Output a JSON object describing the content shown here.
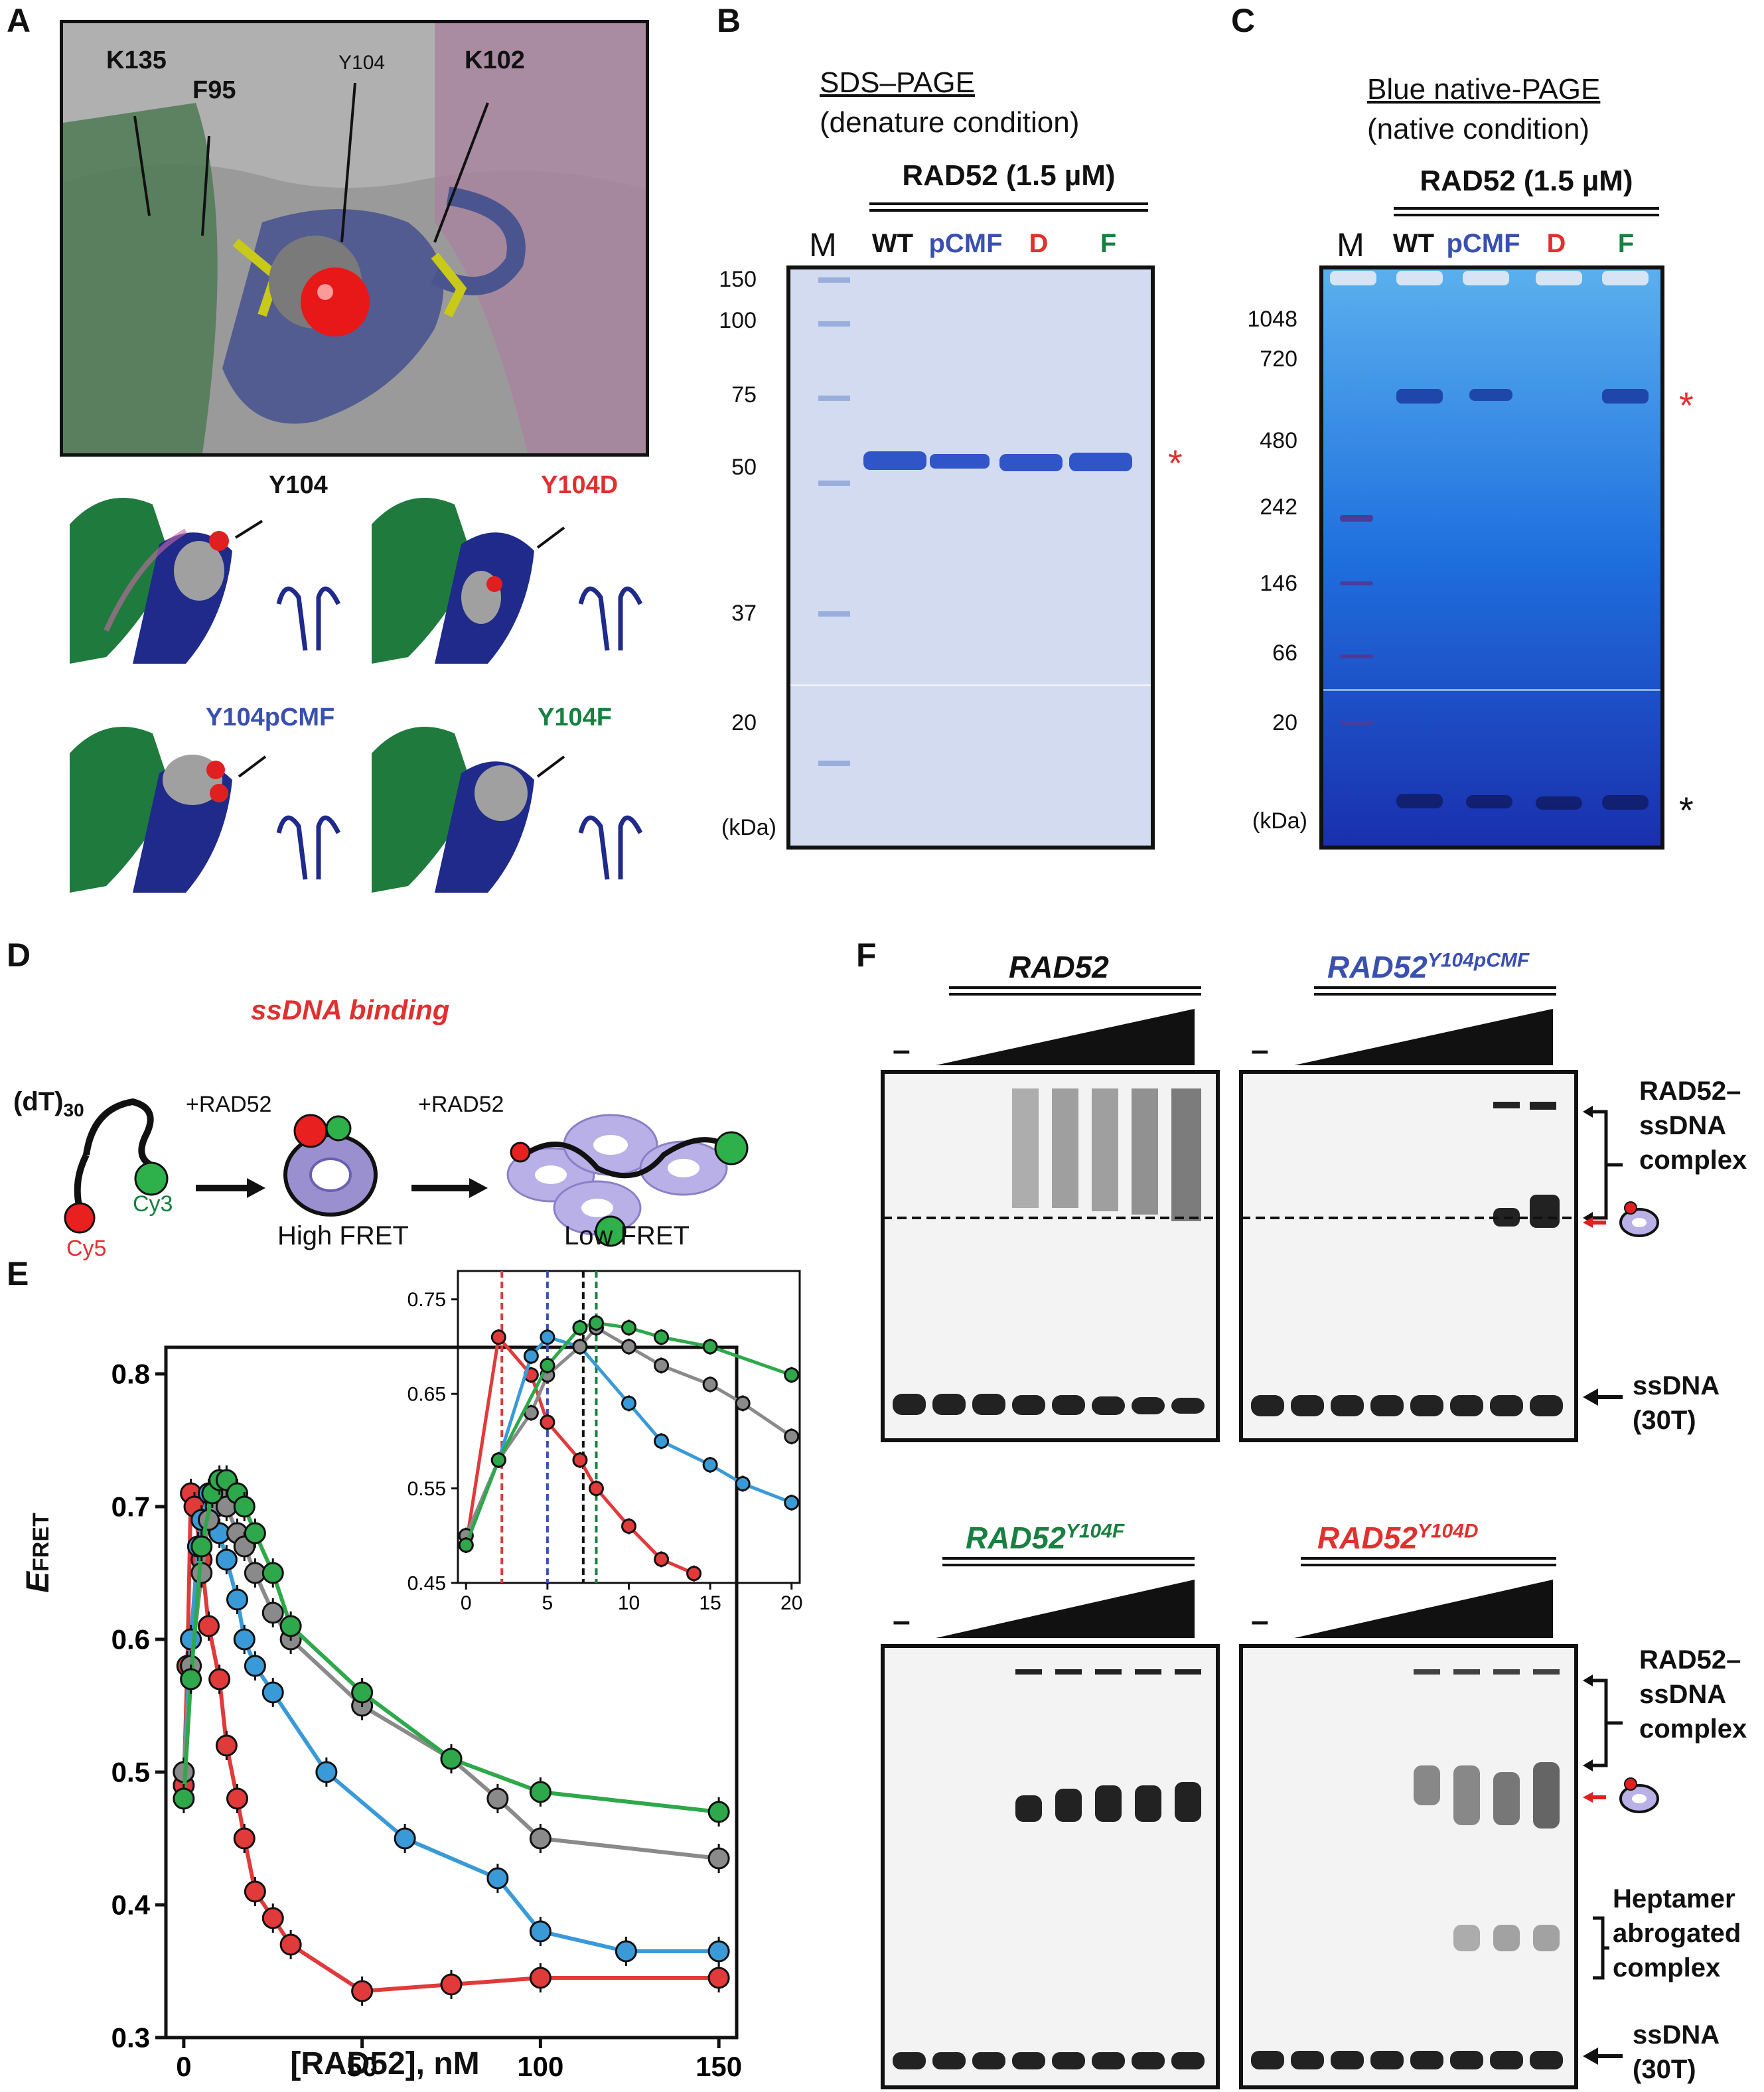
{
  "panels": {
    "A": "A",
    "B": "B",
    "C": "C",
    "D": "D",
    "E": "E",
    "F": "F"
  },
  "panelA": {
    "top_labels": [
      "K135",
      "F95",
      "Y104",
      "K102"
    ],
    "sub_labels": [
      {
        "text": "Y104",
        "color": "#111111"
      },
      {
        "text": "Y104D",
        "color": "#e03030"
      },
      {
        "text": "Y104pCMF",
        "color": "#3a50b0"
      },
      {
        "text": "Y104F",
        "color": "#188040"
      }
    ]
  },
  "panelB": {
    "title": "SDS–PAGE",
    "subtitle": "(denature condition)",
    "protein": "RAD52 (1.5 µM)",
    "lanes": [
      {
        "label": "M",
        "color": "#222222"
      },
      {
        "label": "WT",
        "color": "#222222"
      },
      {
        "label": "pCMF",
        "color": "#3a50b0"
      },
      {
        "label": "D",
        "color": "#e03030"
      },
      {
        "label": "F",
        "color": "#188040"
      }
    ],
    "markers": [
      "150",
      "100",
      "75",
      "50",
      "37",
      "20"
    ],
    "unit": "(kDa)",
    "asterisk": "*"
  },
  "panelC": {
    "title": "Blue native-PAGE",
    "subtitle": "(native condition)",
    "protein": "RAD52 (1.5 µM)",
    "lanes": [
      {
        "label": "M",
        "color": "#222222"
      },
      {
        "label": "WT",
        "color": "#222222"
      },
      {
        "label": "pCMF",
        "color": "#3a50b0"
      },
      {
        "label": "D",
        "color": "#e03030"
      },
      {
        "label": "F",
        "color": "#188040"
      }
    ],
    "markers": [
      "1048",
      "720",
      "480",
      "242",
      "146",
      "66",
      "20"
    ],
    "unit": "(kDa)",
    "asterisk_red": "*",
    "asterisk_black": "*"
  },
  "panelD": {
    "title": "ssDNA binding",
    "dna": "(dT)",
    "dna_sub": "30",
    "cy5": "Cy5",
    "cy3": "Cy3",
    "step1": "+RAD52",
    "step2": "+RAD52",
    "high": "High FRET",
    "low": "Low FRET"
  },
  "panelF": {
    "gels": [
      {
        "title": "RAD52",
        "sup": "",
        "color": "#111111",
        "minus": "–"
      },
      {
        "title": "RAD52",
        "sup": "Y104pCMF",
        "color": "#3a50b0",
        "minus": "–"
      },
      {
        "title": "RAD52",
        "sup": "Y104F",
        "color": "#188040",
        "minus": "–"
      },
      {
        "title": "RAD52",
        "sup": "Y104D",
        "color": "#e03030",
        "minus": "–"
      }
    ],
    "complex_label": [
      "RAD52–",
      "ssDNA",
      "complex"
    ],
    "ssdna_label": [
      "ssDNA",
      "(30T)"
    ],
    "heptamer_label": [
      "Heptamer",
      "abrogated",
      "complex"
    ]
  },
  "chart_data": [
    {
      "type": "scatter",
      "title": "",
      "xlabel": "[RAD52], nM",
      "ylabel": "E_FRET",
      "xlim": [
        -5,
        155
      ],
      "ylim": [
        0.3,
        0.82
      ],
      "xticks": [
        0,
        50,
        100,
        150
      ],
      "yticks": [
        0.3,
        0.4,
        0.5,
        0.6,
        0.7,
        0.8
      ],
      "series": [
        {
          "color": "#e03a3a",
          "x": [
            0,
            1,
            2,
            3,
            5,
            7,
            10,
            12,
            15,
            17,
            20,
            25,
            30,
            50,
            75,
            100,
            150
          ],
          "y": [
            0.49,
            0.58,
            0.71,
            0.7,
            0.66,
            0.61,
            0.57,
            0.52,
            0.48,
            0.45,
            0.41,
            0.39,
            0.37,
            0.335,
            0.34,
            0.345,
            0.345
          ]
        },
        {
          "color": "#3a9ad8",
          "x": [
            0,
            2,
            4,
            5,
            7,
            9,
            10,
            12,
            15,
            17,
            20,
            25,
            40,
            62,
            88,
            100,
            124,
            150
          ],
          "y": [
            0.5,
            0.6,
            0.67,
            0.69,
            0.71,
            0.7,
            0.68,
            0.66,
            0.63,
            0.6,
            0.58,
            0.56,
            0.5,
            0.45,
            0.42,
            0.38,
            0.365,
            0.365
          ]
        },
        {
          "color": "#8a8a8a",
          "x": [
            0,
            2,
            5,
            7,
            10,
            12,
            15,
            17,
            20,
            25,
            30,
            50,
            75,
            88,
            100,
            150
          ],
          "y": [
            0.5,
            0.58,
            0.65,
            0.69,
            0.71,
            0.7,
            0.68,
            0.67,
            0.65,
            0.62,
            0.6,
            0.55,
            0.51,
            0.48,
            0.45,
            0.435
          ]
        },
        {
          "color": "#2ea84a",
          "x": [
            0,
            2,
            5,
            8,
            10,
            12,
            15,
            17,
            20,
            25,
            30,
            50,
            75,
            100,
            150
          ],
          "y": [
            0.48,
            0.57,
            0.67,
            0.71,
            0.72,
            0.72,
            0.71,
            0.7,
            0.68,
            0.65,
            0.61,
            0.56,
            0.51,
            0.485,
            0.47
          ]
        }
      ]
    },
    {
      "type": "scatter",
      "title": "",
      "xlabel": "",
      "ylabel": "",
      "xlim": [
        -0.5,
        20.5
      ],
      "ylim": [
        0.45,
        0.78
      ],
      "xticks": [
        0,
        5,
        10,
        15,
        20
      ],
      "yticks": [
        0.45,
        0.55,
        0.65,
        0.75
      ],
      "vlines": [
        {
          "x": 2.2,
          "color": "#e03a3a"
        },
        {
          "x": 5.0,
          "color": "#3a50b0"
        },
        {
          "x": 7.2,
          "color": "#111111"
        },
        {
          "x": 8.0,
          "color": "#188040"
        }
      ],
      "series": [
        {
          "color": "#e03a3a",
          "x": [
            0,
            2,
            4,
            5,
            7,
            8,
            10,
            12,
            14
          ],
          "y": [
            0.49,
            0.71,
            0.67,
            0.62,
            0.58,
            0.55,
            0.51,
            0.475,
            0.46
          ]
        },
        {
          "color": "#3a9ad8",
          "x": [
            0,
            2,
            4,
            5,
            7,
            10,
            12,
            15,
            17,
            20
          ],
          "y": [
            0.5,
            0.58,
            0.69,
            0.71,
            0.7,
            0.64,
            0.6,
            0.575,
            0.555,
            0.535
          ]
        },
        {
          "color": "#8a8a8a",
          "x": [
            0,
            2,
            4,
            5,
            7,
            8,
            10,
            12,
            15,
            17,
            20
          ],
          "y": [
            0.5,
            0.58,
            0.63,
            0.67,
            0.7,
            0.72,
            0.7,
            0.68,
            0.66,
            0.64,
            0.605
          ]
        },
        {
          "color": "#2ea84a",
          "x": [
            0,
            2,
            5,
            7,
            8,
            10,
            12,
            15,
            20
          ],
          "y": [
            0.49,
            0.58,
            0.68,
            0.72,
            0.725,
            0.72,
            0.71,
            0.7,
            0.67
          ]
        }
      ]
    }
  ]
}
